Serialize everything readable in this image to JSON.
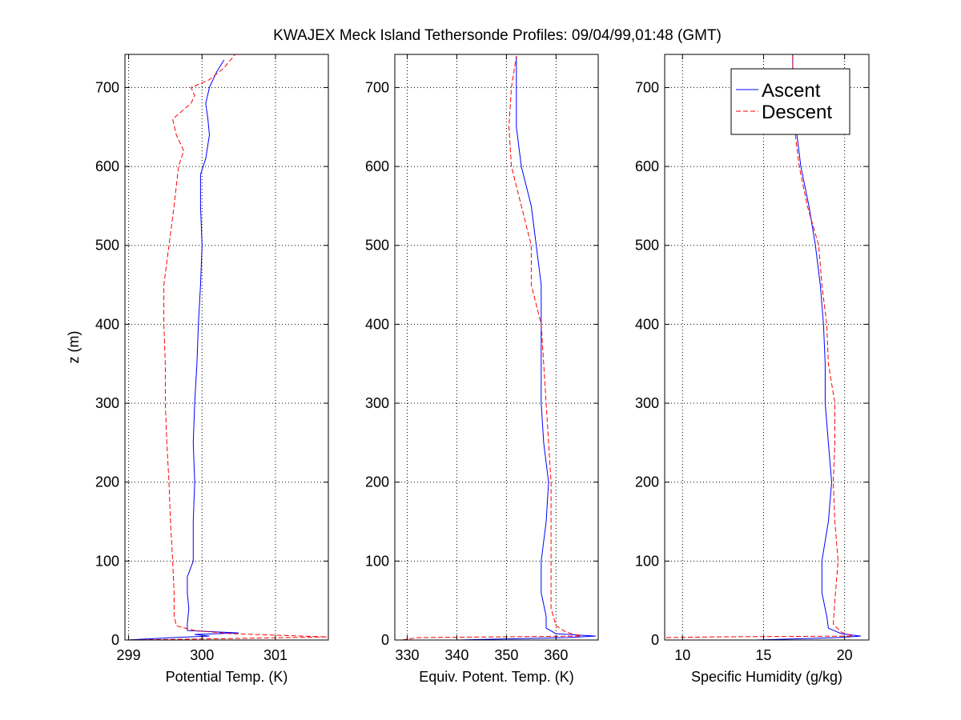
{
  "title": "KWAJEX Meck Island Tethersonde Profiles: 09/04/99,01:48 (GMT)",
  "colors": {
    "ascent": "#0000ff",
    "descent": "#ff0000",
    "grid": "#000000",
    "axes": "#000000"
  },
  "legend": {
    "placement": "top-right of third panel",
    "entries": [
      {
        "label": "Ascent",
        "style": "solid",
        "color": "#0000ff"
      },
      {
        "label": "Descent",
        "style": "dashed",
        "color": "#ff0000"
      }
    ]
  },
  "chart_data": [
    {
      "type": "line",
      "xlabel": "Potential Temp. (K)",
      "ylabel": "z (m)",
      "xlim": [
        298.95,
        301.72
      ],
      "ylim": [
        0,
        742
      ],
      "xticks": [
        299,
        300,
        301
      ],
      "yticks": [
        0,
        100,
        200,
        300,
        400,
        500,
        600,
        700
      ],
      "grid": true,
      "series": [
        {
          "name": "Ascent",
          "points": [
            [
              298.98,
              0
            ],
            [
              299.6,
              3
            ],
            [
              300.1,
              5
            ],
            [
              299.9,
              7
            ],
            [
              300.5,
              9
            ],
            [
              299.8,
              12
            ],
            [
              299.8,
              20
            ],
            [
              299.82,
              40
            ],
            [
              299.8,
              60
            ],
            [
              299.8,
              80
            ],
            [
              299.88,
              100
            ],
            [
              299.88,
              150
            ],
            [
              299.9,
              200
            ],
            [
              299.88,
              250
            ],
            [
              299.9,
              300
            ],
            [
              299.93,
              350
            ],
            [
              299.95,
              400
            ],
            [
              299.98,
              450
            ],
            [
              300.0,
              500
            ],
            [
              299.98,
              550
            ],
            [
              299.98,
              590
            ],
            [
              300.05,
              610
            ],
            [
              300.1,
              640
            ],
            [
              300.08,
              660
            ],
            [
              300.05,
              680
            ],
            [
              300.1,
              700
            ],
            [
              300.2,
              720
            ],
            [
              300.3,
              735
            ]
          ]
        },
        {
          "name": "Descent",
          "points": [
            [
              298.98,
              0
            ],
            [
              300.5,
              2
            ],
            [
              301.7,
              4
            ],
            [
              300.4,
              8
            ],
            [
              299.9,
              12
            ],
            [
              299.65,
              18
            ],
            [
              299.62,
              30
            ],
            [
              299.62,
              60
            ],
            [
              299.6,
              100
            ],
            [
              299.57,
              150
            ],
            [
              299.55,
              200
            ],
            [
              299.52,
              250
            ],
            [
              299.5,
              300
            ],
            [
              299.5,
              350
            ],
            [
              299.48,
              400
            ],
            [
              299.48,
              450
            ],
            [
              299.55,
              500
            ],
            [
              299.62,
              550
            ],
            [
              299.68,
              600
            ],
            [
              299.75,
              620
            ],
            [
              299.65,
              640
            ],
            [
              299.6,
              660
            ],
            [
              299.85,
              680
            ],
            [
              299.9,
              690
            ],
            [
              299.85,
              700
            ],
            [
              300.1,
              710
            ],
            [
              300.3,
              725
            ],
            [
              300.45,
              742
            ]
          ]
        }
      ]
    },
    {
      "type": "line",
      "xlabel": "Equiv. Potent. Temp. (K)",
      "ylabel": "",
      "xlim": [
        327.5,
        368.5
      ],
      "ylim": [
        0,
        742
      ],
      "xticks": [
        330,
        340,
        350,
        360
      ],
      "yticks": [
        0,
        100,
        200,
        300,
        400,
        500,
        600,
        700
      ],
      "grid": true,
      "series": [
        {
          "name": "Ascent",
          "points": [
            [
              340,
              0
            ],
            [
              362,
              3
            ],
            [
              368,
              5
            ],
            [
              360,
              8
            ],
            [
              358,
              15
            ],
            [
              358,
              30
            ],
            [
              357,
              60
            ],
            [
              357,
              100
            ],
            [
              358,
              150
            ],
            [
              358.5,
              200
            ],
            [
              357.5,
              250
            ],
            [
              357,
              300
            ],
            [
              357,
              350
            ],
            [
              357,
              400
            ],
            [
              357,
              450
            ],
            [
              356,
              500
            ],
            [
              355,
              550
            ],
            [
              353,
              600
            ],
            [
              352,
              650
            ],
            [
              352,
              700
            ],
            [
              352,
              740
            ]
          ]
        },
        {
          "name": "Descent",
          "points": [
            [
              329,
              0
            ],
            [
              332,
              3
            ],
            [
              365,
              5
            ],
            [
              362,
              10
            ],
            [
              360,
              18
            ],
            [
              359,
              40
            ],
            [
              359,
              100
            ],
            [
              359,
              150
            ],
            [
              359,
              200
            ],
            [
              358.5,
              250
            ],
            [
              358,
              300
            ],
            [
              357.5,
              350
            ],
            [
              357,
              400
            ],
            [
              355,
              450
            ],
            [
              355,
              500
            ],
            [
              353,
              550
            ],
            [
              351,
              600
            ],
            [
              350.5,
              650
            ],
            [
              351,
              700
            ],
            [
              352,
              740
            ]
          ]
        }
      ]
    },
    {
      "type": "line",
      "xlabel": "Specific Humidity (g/kg)",
      "ylabel": "",
      "xlim": [
        8.9,
        21.5
      ],
      "ylim": [
        0,
        742
      ],
      "xticks": [
        10,
        15,
        20
      ],
      "yticks": [
        0,
        100,
        200,
        300,
        400,
        500,
        600,
        700
      ],
      "grid": true,
      "series": [
        {
          "name": "Ascent",
          "points": [
            [
              14.5,
              0
            ],
            [
              19.5,
              3
            ],
            [
              21,
              5
            ],
            [
              19.8,
              8
            ],
            [
              19.0,
              15
            ],
            [
              18.9,
              30
            ],
            [
              18.6,
              60
            ],
            [
              18.6,
              100
            ],
            [
              19.0,
              150
            ],
            [
              19.2,
              200
            ],
            [
              19.0,
              250
            ],
            [
              18.8,
              300
            ],
            [
              18.8,
              350
            ],
            [
              18.7,
              400
            ],
            [
              18.5,
              450
            ],
            [
              18.2,
              500
            ],
            [
              17.8,
              550
            ],
            [
              17.3,
              600
            ],
            [
              17.0,
              650
            ],
            [
              16.8,
              700
            ],
            [
              16.8,
              742
            ]
          ]
        },
        {
          "name": "Descent",
          "points": [
            [
              9.0,
              3
            ],
            [
              12,
              4
            ],
            [
              20.5,
              5
            ],
            [
              19.8,
              10
            ],
            [
              19.3,
              20
            ],
            [
              19.4,
              50
            ],
            [
              19.6,
              100
            ],
            [
              19.4,
              150
            ],
            [
              19.3,
              200
            ],
            [
              19.4,
              250
            ],
            [
              19.4,
              300
            ],
            [
              19.0,
              350
            ],
            [
              18.9,
              400
            ],
            [
              18.6,
              450
            ],
            [
              18.4,
              500
            ],
            [
              17.7,
              550
            ],
            [
              17.2,
              600
            ],
            [
              16.9,
              650
            ],
            [
              16.8,
              700
            ],
            [
              16.8,
              742
            ]
          ]
        }
      ]
    }
  ]
}
